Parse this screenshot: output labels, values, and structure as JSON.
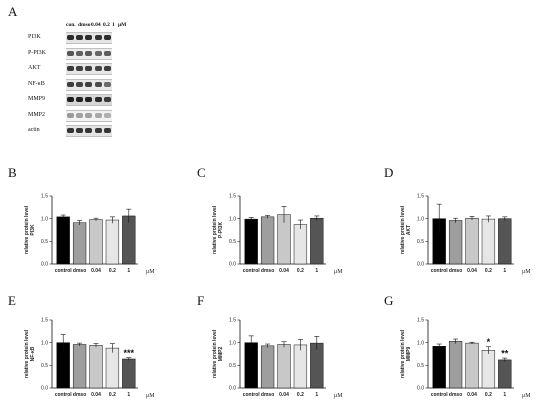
{
  "panel_letters": [
    "A",
    "B",
    "C",
    "D",
    "E",
    "F",
    "G"
  ],
  "blot": {
    "header": {
      "con": "con.",
      "dmso": "dmso",
      "c1": "0.04",
      "c2": "0.2",
      "c3": "1",
      "unit": "μM"
    },
    "rows": [
      {
        "label": "PI3K",
        "bands": [
          "#2b2b2b",
          "#2f2f2f",
          "#2d2d2d",
          "#333",
          "#2d2d2d"
        ],
        "bg": "#e4e4e4"
      },
      {
        "label": "P-PI3K",
        "bands": [
          "#555",
          "#606060",
          "#5a5a5a",
          "#666",
          "#5c5c5c"
        ],
        "bg": "#ececec"
      },
      {
        "label": "AKT",
        "bands": [
          "#3a3a3a",
          "#3f3f3f",
          "#3d3d3d",
          "#444",
          "#3c3c3c"
        ],
        "bg": "#e6e6e6"
      },
      {
        "label": "NF-κB",
        "bands": [
          "#3d3d3d",
          "#444",
          "#404040",
          "#4a4a4a",
          "#6a6a6a"
        ],
        "bg": "#e8e8e8"
      },
      {
        "label": "MMP9",
        "bands": [
          "#1e1e1e",
          "#222",
          "#222",
          "#2a2a2a",
          "#3a3a3a"
        ],
        "bg": "#d6d6d6"
      },
      {
        "label": "MMP2",
        "bands": [
          "#9a9a9a",
          "#a0a0a0",
          "#a0a0a0",
          "#a8a8a8",
          "#b0b0b0"
        ],
        "bg": "#f2f2f2"
      },
      {
        "label": "actin",
        "bands": [
          "#333",
          "#363636",
          "#353535",
          "#383838",
          "#363636"
        ],
        "bg": "#e4e4e4"
      }
    ]
  },
  "chart_data": [
    {
      "panel": "B",
      "type": "bar",
      "categories": [
        "control",
        "dmso",
        "0.04",
        "0.2",
        "1"
      ],
      "unit": "μM",
      "ylabel": [
        "relative protein level",
        "PI3K"
      ],
      "ylim": [
        0,
        1.5
      ],
      "yticks": [
        "0.0",
        "0.5",
        "1.0",
        "1.5"
      ],
      "values": [
        1.04,
        0.91,
        0.98,
        0.97,
        1.06
      ],
      "errors": [
        0.04,
        0.05,
        0.03,
        0.07,
        0.15
      ],
      "colors": [
        "#000000",
        "#9e9e9e",
        "#c8c8c8",
        "#e6e6e6",
        "#555555"
      ],
      "significance": [
        "",
        "",
        "",
        "",
        ""
      ]
    },
    {
      "panel": "C",
      "type": "bar",
      "categories": [
        "control",
        "dmso",
        "0.04",
        "0.2",
        "1"
      ],
      "unit": "μM",
      "ylabel": [
        "relative protein level",
        "P-PI3K"
      ],
      "ylim": [
        0,
        1.5
      ],
      "yticks": [
        "0.0",
        "0.5",
        "1.0",
        "1.5"
      ],
      "values": [
        0.99,
        1.04,
        1.09,
        0.87,
        1.01
      ],
      "errors": [
        0.04,
        0.03,
        0.18,
        0.1,
        0.05
      ],
      "colors": [
        "#000000",
        "#9e9e9e",
        "#c8c8c8",
        "#e6e6e6",
        "#555555"
      ],
      "significance": [
        "",
        "",
        "",
        "",
        ""
      ]
    },
    {
      "panel": "D",
      "type": "bar",
      "categories": [
        "control",
        "dmso",
        "0.04",
        "0.2",
        "1"
      ],
      "unit": "μM",
      "ylabel": [
        "relative protein level",
        "AKT"
      ],
      "ylim": [
        0,
        1.5
      ],
      "yticks": [
        "0.0",
        "0.5",
        "1.0",
        "1.5"
      ],
      "values": [
        1.0,
        0.96,
        1.01,
        0.99,
        1.0
      ],
      "errors": [
        0.32,
        0.05,
        0.04,
        0.07,
        0.04
      ],
      "colors": [
        "#000000",
        "#9e9e9e",
        "#c8c8c8",
        "#e6e6e6",
        "#555555"
      ],
      "significance": [
        "",
        "",
        "",
        "",
        ""
      ]
    },
    {
      "panel": "E",
      "type": "bar",
      "categories": [
        "control",
        "dmso",
        "0.04",
        "0.2",
        "1"
      ],
      "unit": "μM",
      "ylabel": [
        "relative protein level",
        "NF-κB"
      ],
      "ylim": [
        0,
        1.5
      ],
      "yticks": [
        "0.0",
        "0.5",
        "1.0",
        "1.5"
      ],
      "values": [
        1.0,
        0.96,
        0.94,
        0.88,
        0.64
      ],
      "errors": [
        0.18,
        0.03,
        0.04,
        0.1,
        0.03
      ],
      "colors": [
        "#000000",
        "#9e9e9e",
        "#c8c8c8",
        "#e6e6e6",
        "#555555"
      ],
      "significance": [
        "",
        "",
        "",
        "",
        "***"
      ]
    },
    {
      "panel": "F",
      "type": "bar",
      "categories": [
        "control",
        "dmso",
        "0.04",
        "0.2",
        "1"
      ],
      "unit": "μM",
      "ylabel": [
        "relative protein level",
        "MMP2"
      ],
      "ylim": [
        0,
        1.5
      ],
      "yticks": [
        "0.0",
        "0.5",
        "1.0",
        "1.5"
      ],
      "values": [
        1.0,
        0.93,
        0.96,
        0.95,
        0.99
      ],
      "errors": [
        0.15,
        0.04,
        0.06,
        0.12,
        0.15
      ],
      "colors": [
        "#000000",
        "#9e9e9e",
        "#c8c8c8",
        "#e6e6e6",
        "#555555"
      ],
      "significance": [
        "",
        "",
        "",
        "",
        ""
      ]
    },
    {
      "panel": "G",
      "type": "bar",
      "categories": [
        "control",
        "dmso",
        "0.04",
        "0.2",
        "1"
      ],
      "unit": "μM",
      "ylabel": [
        "relative protein level",
        "MMP9"
      ],
      "ylim": [
        0,
        1.5
      ],
      "yticks": [
        "0.0",
        "0.5",
        "1.0",
        "1.5"
      ],
      "values": [
        0.92,
        1.03,
        0.99,
        0.83,
        0.62
      ],
      "errors": [
        0.05,
        0.05,
        0.02,
        0.08,
        0.04
      ],
      "colors": [
        "#000000",
        "#9e9e9e",
        "#c8c8c8",
        "#e6e6e6",
        "#555555"
      ],
      "significance": [
        "",
        "",
        "",
        "*",
        "**"
      ]
    }
  ]
}
